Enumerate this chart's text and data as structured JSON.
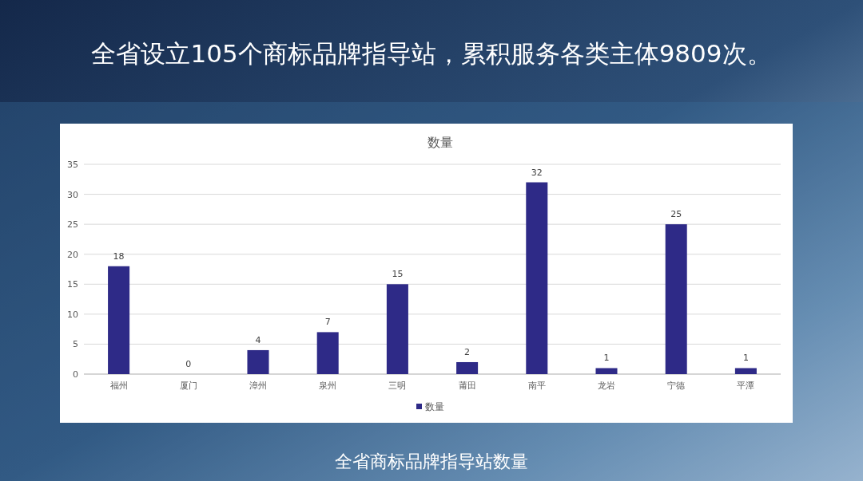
{
  "chart_data": {
    "type": "bar",
    "title": "数量",
    "annotations": [
      "全省设立105个商标品牌指导站，累积服务各类主体9809次。",
      "全省商标品牌指导站数量"
    ],
    "categories": [
      "福州",
      "厦门",
      "漳州",
      "泉州",
      "三明",
      "莆田",
      "南平",
      "龙岩",
      "宁德",
      "平潭"
    ],
    "series": [
      {
        "name": "数量",
        "color": "#2e2a87",
        "values": [
          18,
          0,
          4,
          7,
          15,
          2,
          32,
          1,
          25,
          1
        ]
      }
    ],
    "ylim": [
      0,
      35
    ],
    "yticks": [
      0,
      5,
      10,
      15,
      20,
      25,
      30,
      35
    ],
    "grid": "y",
    "legend": "bottom",
    "data_labels": true
  }
}
